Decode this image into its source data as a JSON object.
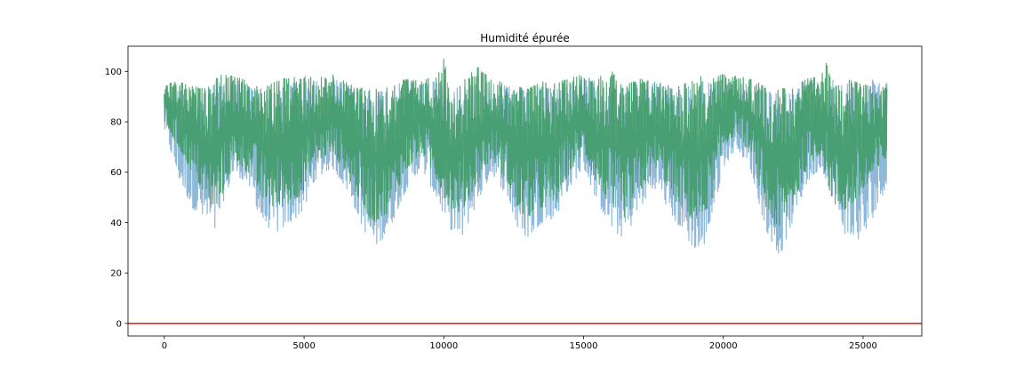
{
  "chart_data": {
    "type": "line",
    "title": "Humidité épurée",
    "xlabel": "",
    "ylabel": "",
    "xlim": [
      -1300,
      27100
    ],
    "ylim": [
      -5,
      110
    ],
    "x_ticks": [
      0,
      5000,
      10000,
      15000,
      20000,
      25000
    ],
    "y_ticks": [
      0,
      20,
      40,
      60,
      80,
      100
    ],
    "grid": false,
    "legend": "none",
    "x_range": [
      0,
      25850
    ],
    "series": [
      {
        "color": "#7bacd2",
        "envelope": {
          "x": [
            0,
            500,
            1000,
            1500,
            1800,
            2100,
            2500,
            3000,
            3500,
            4000,
            4500,
            5000,
            5400,
            6000,
            6600,
            7100,
            7500,
            8000,
            8600,
            9200,
            9800,
            10200,
            10600,
            11200,
            11700,
            12300,
            12600,
            13000,
            13500,
            14000,
            14400,
            15000,
            15500,
            16100,
            16500,
            17000,
            17600,
            18200,
            18800,
            19200,
            19600,
            20000,
            20500,
            21000,
            21500,
            22000,
            22400,
            23000,
            23500,
            24000,
            24400,
            25000,
            25500,
            25850
          ],
          "upper": [
            94,
            95,
            93,
            92,
            95,
            96,
            97,
            95,
            92,
            94,
            95,
            97,
            96,
            98,
            94,
            93,
            92,
            93,
            96,
            95,
            97,
            96,
            94,
            95,
            96,
            94,
            93,
            92,
            94,
            93,
            95,
            97,
            96,
            95,
            94,
            96,
            95,
            93,
            95,
            97,
            95,
            97,
            96,
            95,
            92,
            91,
            92,
            95,
            96,
            97,
            95,
            96,
            97,
            96
          ],
          "lower": [
            77,
            58,
            46,
            40,
            36,
            48,
            60,
            55,
            40,
            36,
            40,
            45,
            57,
            62,
            52,
            38,
            30,
            36,
            52,
            62,
            48,
            38,
            33,
            48,
            60,
            50,
            38,
            34,
            40,
            42,
            52,
            62,
            48,
            36,
            34,
            46,
            54,
            42,
            32,
            27,
            42,
            62,
            70,
            60,
            38,
            26,
            38,
            56,
            62,
            48,
            34,
            33,
            46,
            55
          ]
        }
      },
      {
        "color": "#3d9a62",
        "envelope": {
          "x": [
            0,
            500,
            1000,
            1500,
            1800,
            2100,
            2500,
            3000,
            3500,
            4000,
            4500,
            5000,
            5400,
            6000,
            6600,
            7100,
            7500,
            8000,
            8600,
            9200,
            9800,
            10000,
            10200,
            10600,
            11200,
            11700,
            12300,
            12600,
            13000,
            13500,
            14000,
            14400,
            15000,
            15500,
            16100,
            16500,
            17000,
            17600,
            18200,
            18800,
            19200,
            19600,
            20000,
            20500,
            21000,
            21500,
            22000,
            22400,
            23000,
            23500,
            23700,
            24000,
            24400,
            25000,
            25500,
            25850
          ],
          "upper": [
            95,
            96,
            94,
            93,
            97,
            99,
            98,
            96,
            93,
            96,
            98,
            99,
            97,
            99,
            95,
            94,
            93,
            94,
            97,
            96,
            99,
            105,
            97,
            95,
            102,
            97,
            95,
            94,
            93,
            96,
            95,
            97,
            99,
            98,
            100,
            95,
            97,
            96,
            94,
            96,
            98,
            97,
            99,
            98,
            97,
            94,
            93,
            94,
            97,
            98,
            104,
            98,
            97,
            95,
            93,
            94
          ],
          "lower": [
            80,
            70,
            60,
            50,
            44,
            52,
            65,
            60,
            50,
            45,
            48,
            52,
            64,
            68,
            58,
            46,
            40,
            44,
            60,
            68,
            56,
            50,
            46,
            44,
            56,
            66,
            56,
            46,
            42,
            46,
            48,
            58,
            68,
            55,
            44,
            42,
            52,
            62,
            50,
            42,
            40,
            50,
            70,
            76,
            66,
            46,
            36,
            44,
            62,
            68,
            56,
            46,
            45,
            52,
            60,
            66
          ]
        }
      },
      {
        "color": "#e8291c",
        "value": 0
      }
    ]
  }
}
